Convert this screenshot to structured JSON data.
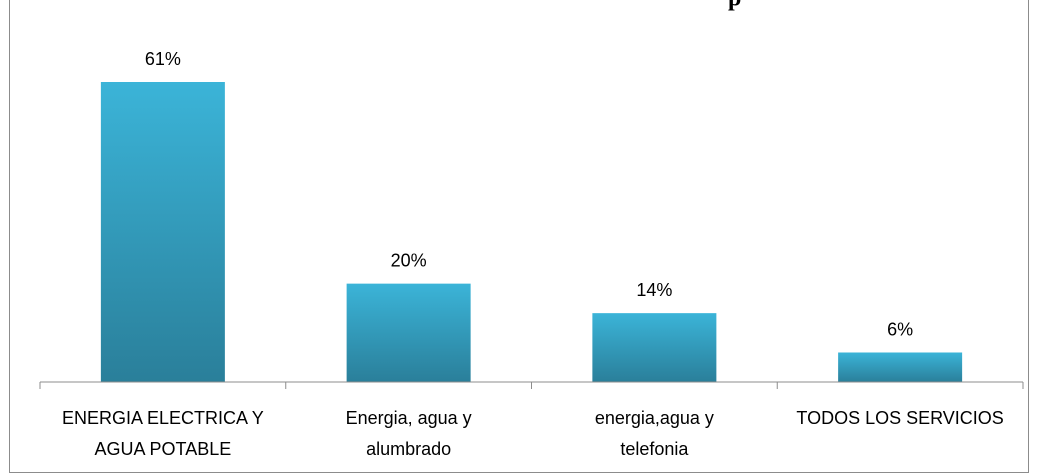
{
  "colors": {
    "bar_top": "#3BB4D8",
    "bar_bottom": "#2A7F9A",
    "axis": "#8C8C8C"
  },
  "chart_data": {
    "type": "bar",
    "title": "p",
    "categories": [
      [
        "ENERGIA ELECTRICA Y",
        "AGUA POTABLE"
      ],
      [
        "Energia, agua y",
        "alumbrado"
      ],
      [
        "energia,agua y",
        "telefonia"
      ],
      [
        "TODOS LOS SERVICIOS"
      ]
    ],
    "values": [
      61,
      20,
      14,
      6
    ],
    "data_labels": [
      "61%",
      "20%",
      "14%",
      "6%"
    ],
    "ylim": [
      0,
      61
    ],
    "grid": false,
    "legend": "none"
  }
}
